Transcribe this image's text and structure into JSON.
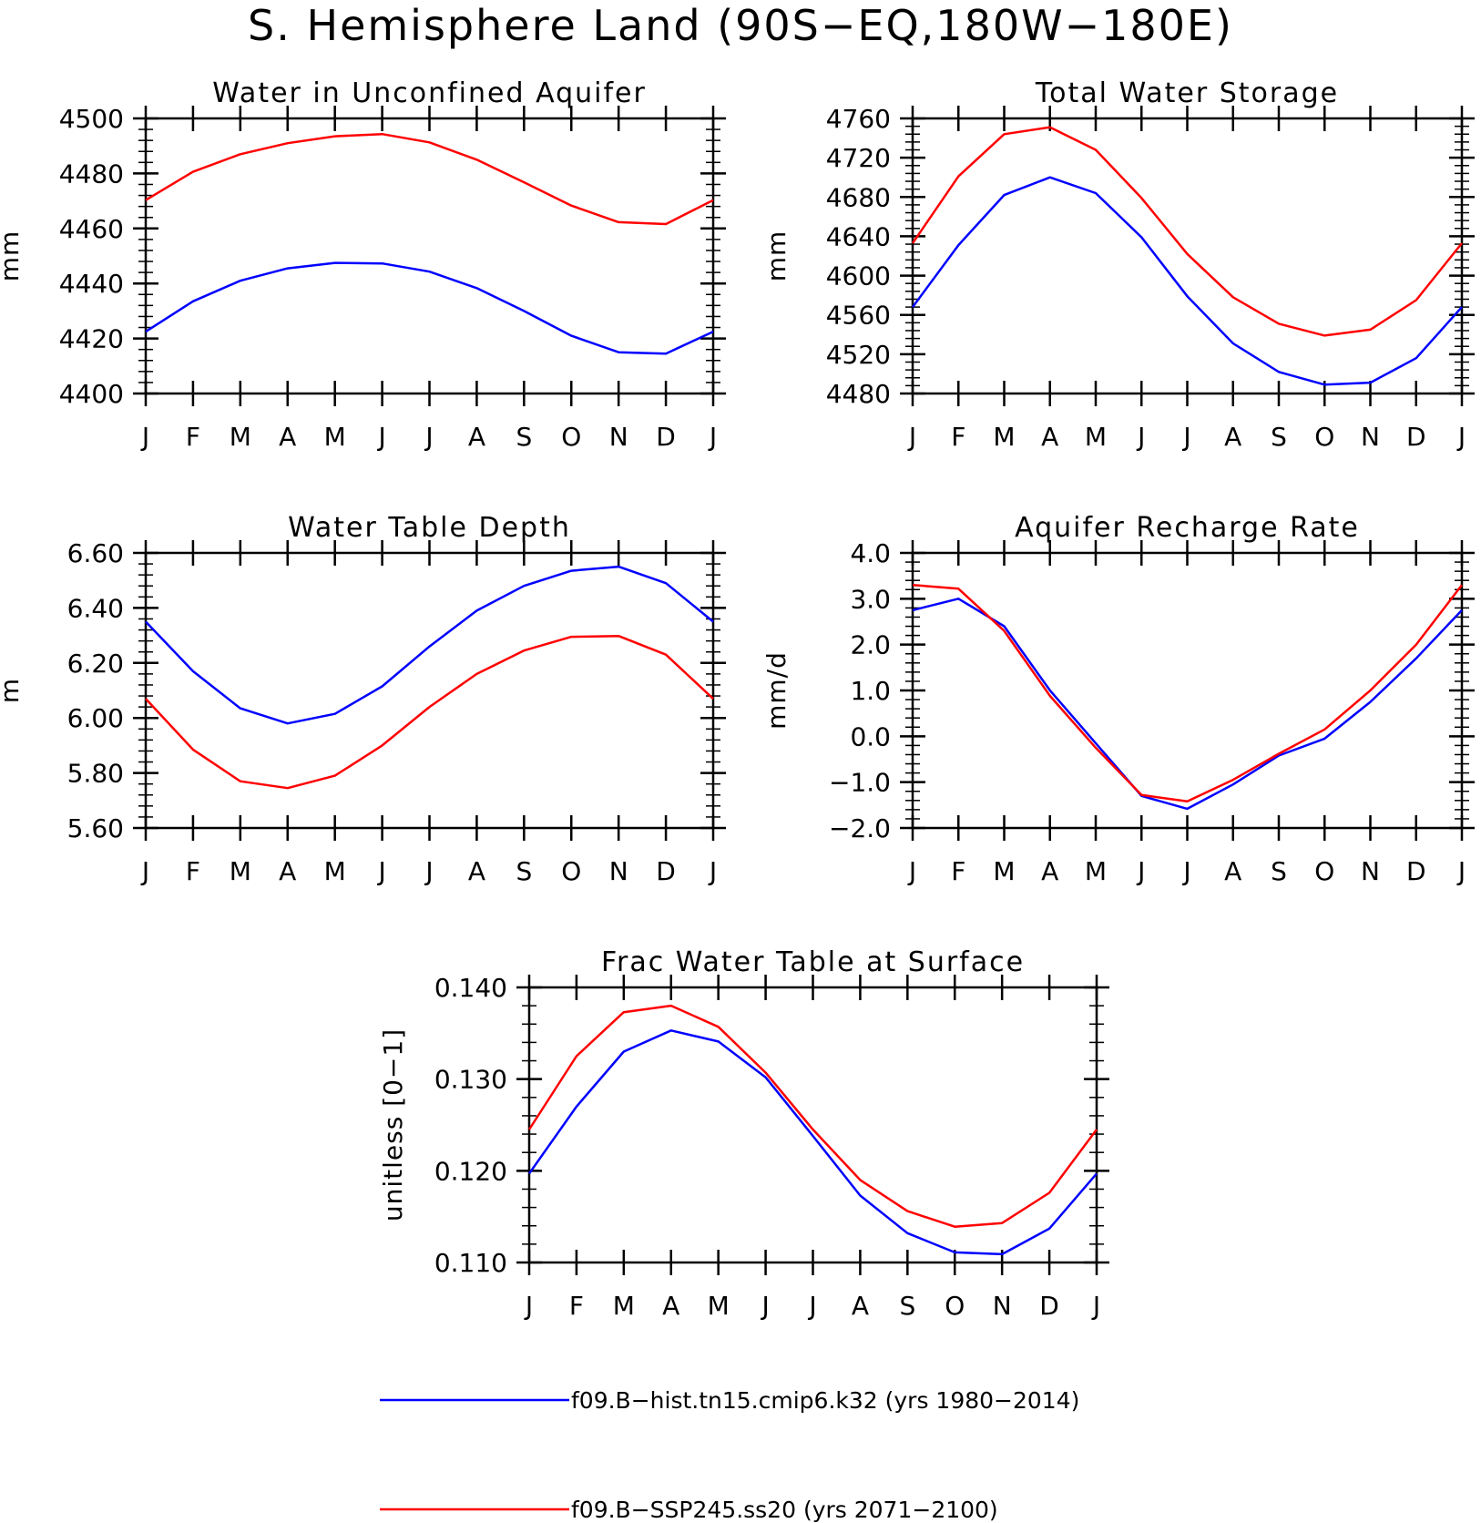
{
  "figure": {
    "title": "S. Hemisphere Land (90S−EQ,180W−180E)"
  },
  "legend": {
    "entries": [
      {
        "label": "f09.B−hist.tn15.cmip6.k32 (yrs 1980−2014)",
        "color": "#0000ff"
      },
      {
        "label": "f09.B−SSP245.ss20 (yrs 2071−2100)",
        "color": "#ff0000"
      }
    ]
  },
  "chart_data": [
    {
      "id": "aquifer",
      "type": "line",
      "title": "Water in Unconfined Aquifer",
      "ylabel": "mm",
      "x_tick_labels": [
        "J",
        "F",
        "M",
        "A",
        "M",
        "J",
        "J",
        "A",
        "S",
        "O",
        "N",
        "D",
        "J"
      ],
      "ylim": [
        4400,
        4500
      ],
      "yticks": [
        4400,
        4420,
        4440,
        4460,
        4480,
        4500
      ],
      "ytick_labels": [
        "4400",
        "4420",
        "4440",
        "4460",
        "4480",
        "4500"
      ],
      "yminor_step": 4,
      "series": [
        {
          "color": "#0000ff",
          "values": [
            4422.5,
            4433.5,
            4441,
            4445.5,
            4447.5,
            4447.3,
            4444.3,
            4438.3,
            4430,
            4421,
            4415,
            4414.5,
            4422.5
          ]
        },
        {
          "color": "#ff0000",
          "values": [
            4470.3,
            4480.6,
            4487,
            4491,
            4493.5,
            4494.3,
            4491.3,
            4485,
            4476.8,
            4468.3,
            4462.3,
            4461.6,
            4470.3
          ]
        }
      ]
    },
    {
      "id": "storage",
      "type": "line",
      "title": "Total Water Storage",
      "ylabel": "mm",
      "x_tick_labels": [
        "J",
        "F",
        "M",
        "A",
        "M",
        "J",
        "J",
        "A",
        "S",
        "O",
        "N",
        "D",
        "J"
      ],
      "ylim": [
        4480,
        4760
      ],
      "yticks": [
        4480,
        4520,
        4560,
        4600,
        4640,
        4680,
        4720,
        4760
      ],
      "ytick_labels": [
        "4480",
        "4520",
        "4560",
        "4600",
        "4640",
        "4680",
        "4720",
        "4760"
      ],
      "yminor_step": 8,
      "series": [
        {
          "color": "#0000ff",
          "values": [
            4568,
            4631,
            4682,
            4700,
            4684,
            4639,
            4579,
            4531,
            4502,
            4489,
            4491,
            4516,
            4568
          ]
        },
        {
          "color": "#ff0000",
          "values": [
            4633,
            4701,
            4744,
            4751,
            4728,
            4679,
            4622,
            4578,
            4551,
            4539,
            4545,
            4575,
            4633
          ]
        }
      ]
    },
    {
      "id": "wtd",
      "type": "line",
      "title": "Water Table Depth",
      "ylabel": "m",
      "x_tick_labels": [
        "J",
        "F",
        "M",
        "A",
        "M",
        "J",
        "J",
        "A",
        "S",
        "O",
        "N",
        "D",
        "J"
      ],
      "ylim": [
        5.6,
        6.6
      ],
      "yticks": [
        5.6,
        5.8,
        6.0,
        6.2,
        6.4,
        6.6
      ],
      "ytick_labels": [
        "5.60",
        "5.80",
        "6.00",
        "6.20",
        "6.40",
        "6.60"
      ],
      "yminor_step": 0.04,
      "series": [
        {
          "color": "#0000ff",
          "values": [
            6.35,
            6.17,
            6.035,
            5.98,
            6.015,
            6.115,
            6.26,
            6.39,
            6.48,
            6.535,
            6.55,
            6.49,
            6.35
          ]
        },
        {
          "color": "#ff0000",
          "values": [
            6.07,
            5.885,
            5.77,
            5.745,
            5.79,
            5.9,
            6.04,
            6.16,
            6.245,
            6.295,
            6.298,
            6.23,
            6.07
          ]
        }
      ]
    },
    {
      "id": "recharge",
      "type": "line",
      "title": "Aquifer Recharge Rate",
      "ylabel": "mm/d",
      "x_tick_labels": [
        "J",
        "F",
        "M",
        "A",
        "M",
        "J",
        "J",
        "A",
        "S",
        "O",
        "N",
        "D",
        "J"
      ],
      "ylim": [
        -2.0,
        4.0
      ],
      "yticks": [
        -2.0,
        -1.0,
        0.0,
        1.0,
        2.0,
        3.0,
        4.0
      ],
      "ytick_labels": [
        "−2.0",
        "−1.0",
        "0.0",
        "1.0",
        "2.0",
        "3.0",
        "4.0"
      ],
      "yminor_step": 0.2,
      "series": [
        {
          "color": "#0000ff",
          "values": [
            2.75,
            3.0,
            2.4,
            1.0,
            -0.15,
            -1.3,
            -1.58,
            -1.05,
            -0.42,
            -0.05,
            0.75,
            1.7,
            2.75
          ]
        },
        {
          "color": "#ff0000",
          "values": [
            3.3,
            3.22,
            2.3,
            0.88,
            -0.25,
            -1.28,
            -1.42,
            -0.95,
            -0.38,
            0.15,
            1.0,
            2.0,
            3.3
          ]
        }
      ]
    },
    {
      "id": "frac",
      "type": "line",
      "title": "Frac Water Table at Surface",
      "ylabel": "unitless [0−1]",
      "x_tick_labels": [
        "J",
        "F",
        "M",
        "A",
        "M",
        "J",
        "J",
        "A",
        "S",
        "O",
        "N",
        "D",
        "J"
      ],
      "ylim": [
        0.11,
        0.14
      ],
      "yticks": [
        0.11,
        0.12,
        0.13,
        0.14
      ],
      "ytick_labels": [
        "0.110",
        "0.120",
        "0.130",
        "0.140"
      ],
      "yminor_step": 0.002,
      "series": [
        {
          "color": "#0000ff",
          "values": [
            0.1197,
            0.127,
            0.133,
            0.1353,
            0.1341,
            0.1302,
            0.1238,
            0.1173,
            0.1132,
            0.1111,
            0.1109,
            0.1137,
            0.1197
          ]
        },
        {
          "color": "#ff0000",
          "values": [
            0.1245,
            0.1325,
            0.1373,
            0.138,
            0.1357,
            0.1307,
            0.1245,
            0.119,
            0.1156,
            0.1139,
            0.1143,
            0.1176,
            0.1245
          ]
        }
      ]
    }
  ]
}
